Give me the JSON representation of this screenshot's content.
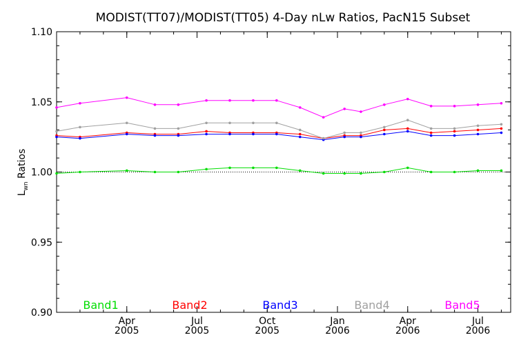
{
  "chart_data": {
    "type": "line",
    "title": "MODIST(TT07)/MODIST(TT05) 4-Day nLw Ratios, PacN15 Subset",
    "ylabel_main": "L",
    "ylabel_sub": "wn",
    "ylabel_rest": " Ratios",
    "ylim": [
      0.9,
      1.1
    ],
    "xlim": [
      0,
      19.4
    ],
    "yticks": [
      {
        "value": 0.9,
        "label": "0.90"
      },
      {
        "value": 0.95,
        "label": "0.95"
      },
      {
        "value": 1.0,
        "label": "1.00"
      },
      {
        "value": 1.05,
        "label": "1.05"
      },
      {
        "value": 1.1,
        "label": "1.10"
      }
    ],
    "xticks": [
      {
        "value": 3,
        "month": "Apr",
        "year": "2005"
      },
      {
        "value": 6,
        "month": "Jul",
        "year": "2005"
      },
      {
        "value": 9,
        "month": "Oct",
        "year": "2005"
      },
      {
        "value": 12,
        "month": "Jan",
        "year": "2006"
      },
      {
        "value": 15,
        "month": "Apr",
        "year": "2006"
      },
      {
        "value": 18,
        "month": "Jul",
        "year": "2006"
      }
    ],
    "reference_line": 1.0,
    "x": [
      0,
      1,
      3,
      4.2,
      5.2,
      6.4,
      7.4,
      8.4,
      9.4,
      10.4,
      11.4,
      12.3,
      13,
      14,
      15,
      16,
      17,
      18,
      19
    ],
    "series": [
      {
        "name": "Band1",
        "color": "#00dd00",
        "values": [
          0.999,
          1.0,
          1.001,
          1.0,
          1.0,
          1.002,
          1.003,
          1.003,
          1.003,
          1.001,
          0.999,
          0.999,
          0.999,
          1.0,
          1.003,
          1.0,
          1.0,
          1.001,
          1.001
        ]
      },
      {
        "name": "Band2",
        "color": "#ff0000",
        "values": [
          1.026,
          1.025,
          1.028,
          1.027,
          1.027,
          1.029,
          1.028,
          1.028,
          1.028,
          1.027,
          1.024,
          1.026,
          1.026,
          1.03,
          1.031,
          1.028,
          1.029,
          1.03,
          1.031
        ]
      },
      {
        "name": "Band3",
        "color": "#0000ff",
        "values": [
          1.025,
          1.024,
          1.027,
          1.026,
          1.026,
          1.027,
          1.027,
          1.027,
          1.027,
          1.025,
          1.023,
          1.025,
          1.025,
          1.027,
          1.029,
          1.026,
          1.026,
          1.027,
          1.028
        ]
      },
      {
        "name": "Band4",
        "color": "#a0a0a0",
        "values": [
          1.029,
          1.032,
          1.035,
          1.031,
          1.031,
          1.035,
          1.035,
          1.035,
          1.035,
          1.03,
          1.024,
          1.028,
          1.028,
          1.032,
          1.037,
          1.031,
          1.031,
          1.033,
          1.034
        ]
      },
      {
        "name": "Band5",
        "color": "#ff00ff",
        "values": [
          1.046,
          1.049,
          1.053,
          1.048,
          1.048,
          1.051,
          1.051,
          1.051,
          1.051,
          1.046,
          1.039,
          1.045,
          1.043,
          1.048,
          1.052,
          1.047,
          1.047,
          1.048,
          1.049
        ]
      }
    ]
  }
}
